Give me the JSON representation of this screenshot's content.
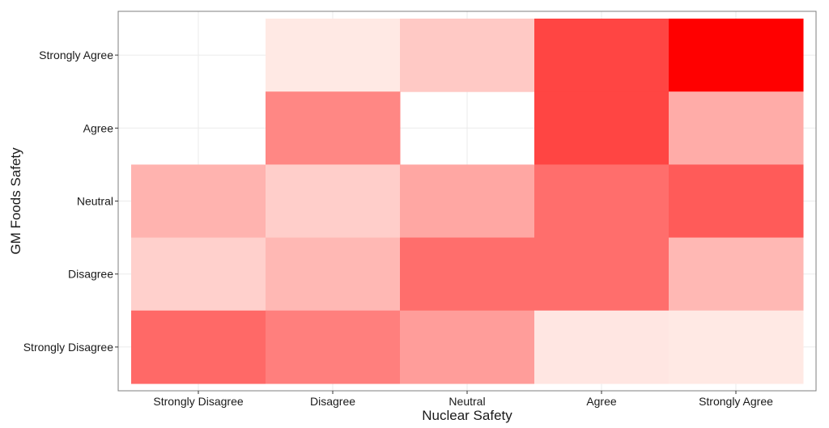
{
  "chart_data": {
    "type": "heatmap",
    "title": "",
    "xlabel": "Nuclear Safety",
    "ylabel": "GM Foods Safety",
    "x_categories": [
      "Strongly Disagree",
      "Disagree",
      "Neutral",
      "Agree",
      "Strongly Agree"
    ],
    "y_categories": [
      "Strongly Disagree",
      "Disagree",
      "Neutral",
      "Agree",
      "Strongly Agree"
    ],
    "color_low": "#fff5f0",
    "color_high": "#ff0000",
    "grid": true,
    "legend": "none",
    "cells": [
      {
        "x": "Strongly Disagree",
        "y": "Strongly Agree",
        "value": null
      },
      {
        "x": "Disagree",
        "y": "Strongly Agree",
        "value": 0.05
      },
      {
        "x": "Neutral",
        "y": "Strongly Agree",
        "value": 0.18
      },
      {
        "x": "Agree",
        "y": "Strongly Agree",
        "value": 0.72
      },
      {
        "x": "Strongly Agree",
        "y": "Strongly Agree",
        "value": 1.0
      },
      {
        "x": "Strongly Disagree",
        "y": "Agree",
        "value": null
      },
      {
        "x": "Disagree",
        "y": "Agree",
        "value": 0.45
      },
      {
        "x": "Neutral",
        "y": "Agree",
        "value": null
      },
      {
        "x": "Agree",
        "y": "Agree",
        "value": 0.72
      },
      {
        "x": "Strongly Agree",
        "y": "Agree",
        "value": 0.3
      },
      {
        "x": "Strongly Disagree",
        "y": "Neutral",
        "value": 0.27
      },
      {
        "x": "Disagree",
        "y": "Neutral",
        "value": 0.16
      },
      {
        "x": "Neutral",
        "y": "Neutral",
        "value": 0.32
      },
      {
        "x": "Agree",
        "y": "Neutral",
        "value": 0.55
      },
      {
        "x": "Strongly Agree",
        "y": "Neutral",
        "value": 0.63
      },
      {
        "x": "Strongly Disagree",
        "y": "Disagree",
        "value": 0.15
      },
      {
        "x": "Disagree",
        "y": "Disagree",
        "value": 0.25
      },
      {
        "x": "Neutral",
        "y": "Disagree",
        "value": 0.55
      },
      {
        "x": "Agree",
        "y": "Disagree",
        "value": 0.55
      },
      {
        "x": "Strongly Agree",
        "y": "Disagree",
        "value": 0.25
      },
      {
        "x": "Strongly Disagree",
        "y": "Strongly Disagree",
        "value": 0.57
      },
      {
        "x": "Disagree",
        "y": "Strongly Disagree",
        "value": 0.48
      },
      {
        "x": "Neutral",
        "y": "Strongly Disagree",
        "value": 0.36
      },
      {
        "x": "Agree",
        "y": "Strongly Disagree",
        "value": 0.06
      },
      {
        "x": "Strongly Agree",
        "y": "Strongly Disagree",
        "value": 0.05
      }
    ]
  }
}
